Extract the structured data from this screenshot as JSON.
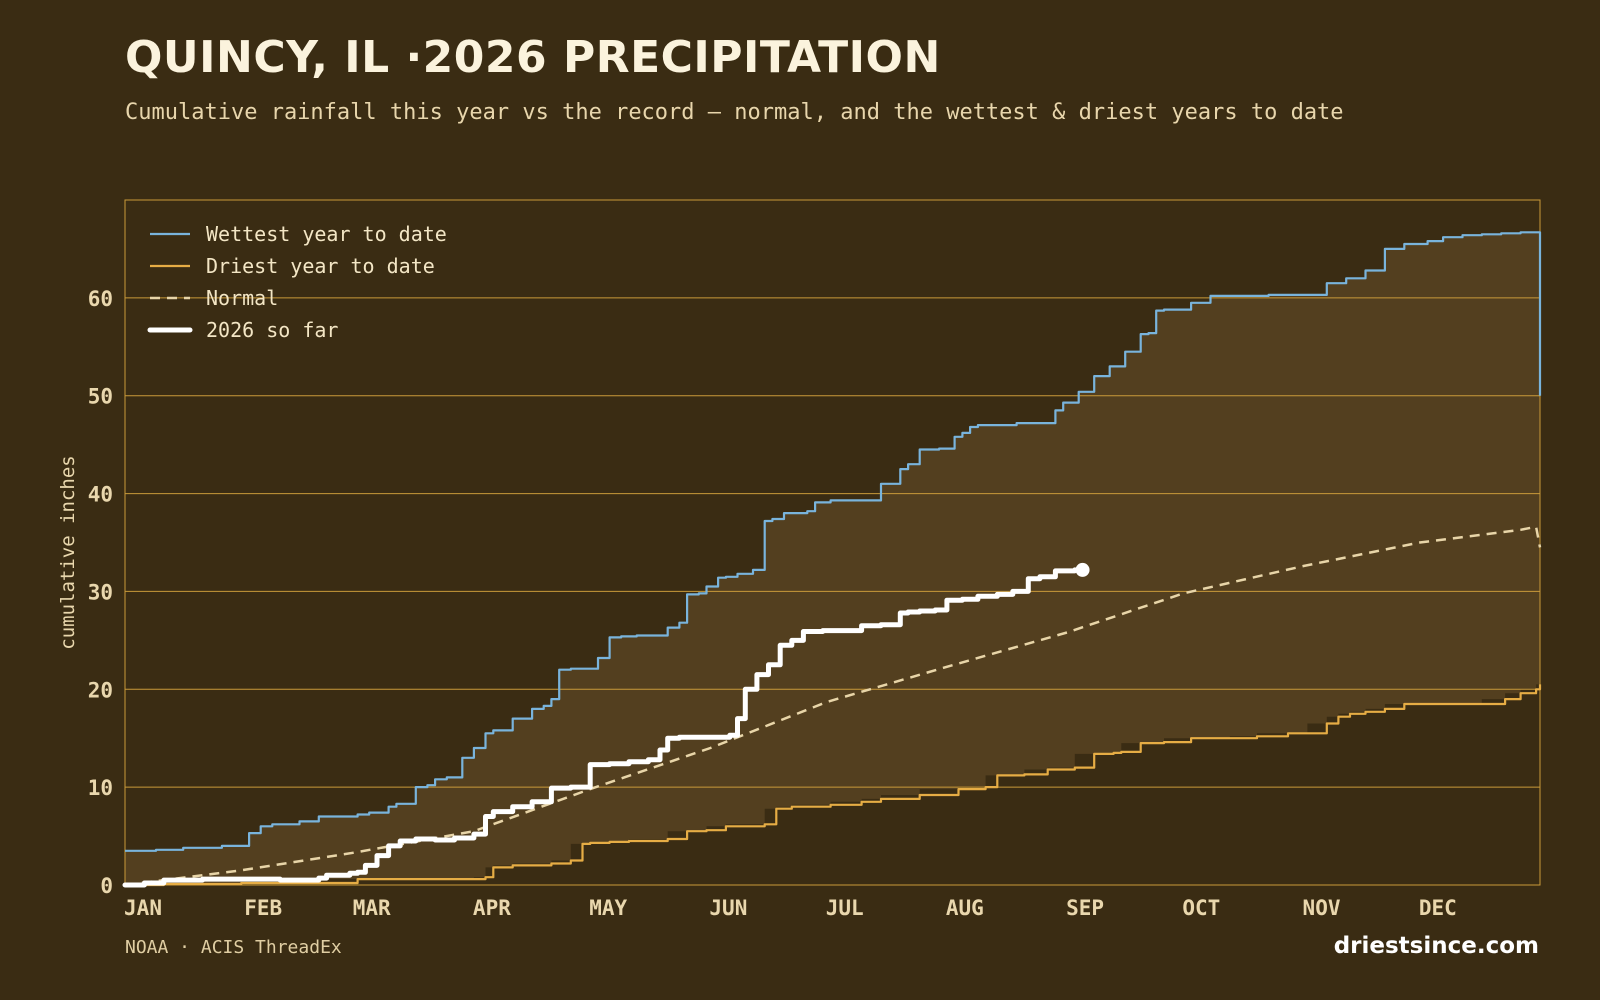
{
  "title": "QUINCY, IL ·2026 PRECIPITATION",
  "subtitle": "Cumulative rainfall this year vs the record — normal, and the wettest & driest years to date",
  "source": "NOAA · ACIS ThreadEx",
  "brand": "driestsince.com",
  "colors": {
    "background": "#3a2c13",
    "band_fill": "#533f1f",
    "grid": "#c99a3a",
    "wettest": "#79b4dc",
    "driest": "#e6ad45",
    "normal": "#e8d5a8",
    "current": "#ffffff",
    "tick_text": "#e9d7ad"
  },
  "chart_data": {
    "type": "line",
    "ylabel": "cumulative inches",
    "xlabel": "",
    "ylim": [
      0,
      70
    ],
    "yticks": [
      0,
      10,
      20,
      30,
      40,
      50,
      60
    ],
    "xlim": [
      0,
      365
    ],
    "xticks": [
      {
        "label": "JAN",
        "day": 0
      },
      {
        "label": "FEB",
        "day": 31
      },
      {
        "label": "MAR",
        "day": 59
      },
      {
        "label": "APR",
        "day": 90
      },
      {
        "label": "MAY",
        "day": 120
      },
      {
        "label": "JUN",
        "day": 151
      },
      {
        "label": "JUL",
        "day": 181
      },
      {
        "label": "AUG",
        "day": 212
      },
      {
        "label": "SEP",
        "day": 243
      },
      {
        "label": "OCT",
        "day": 273
      },
      {
        "label": "NOV",
        "day": 304
      },
      {
        "label": "DEC",
        "day": 334
      }
    ],
    "grid": true,
    "legend_position": "top-left",
    "band": "shaded between wettest and driest",
    "series": [
      {
        "name": "Wettest year to date",
        "style": "solid",
        "x": [
          0,
          8,
          15,
          25,
          32,
          35,
          38,
          45,
          50,
          55,
          60,
          63,
          68,
          70,
          75,
          78,
          80,
          83,
          87,
          90,
          93,
          95,
          100,
          105,
          108,
          110,
          112,
          115,
          122,
          125,
          128,
          132,
          140,
          143,
          145,
          148,
          150,
          153,
          155,
          158,
          162,
          165,
          167,
          170,
          176,
          178,
          182,
          189,
          195,
          200,
          202,
          205,
          210,
          214,
          216,
          218,
          220,
          222,
          225,
          230,
          240,
          242,
          246,
          250,
          254,
          258,
          262,
          264,
          266,
          268,
          270,
          275,
          280,
          290,
          295,
          300,
          310,
          315,
          320,
          325,
          330,
          336,
          340,
          345,
          350,
          355,
          360,
          364,
          365
        ],
        "y": [
          3.5,
          3.6,
          3.8,
          4.0,
          5.3,
          6.0,
          6.2,
          6.5,
          7.0,
          7.0,
          7.2,
          7.4,
          8.0,
          8.3,
          10.0,
          10.2,
          10.8,
          11.0,
          13.0,
          14.0,
          15.5,
          15.8,
          17.0,
          18.0,
          18.3,
          19.0,
          22.0,
          22.1,
          23.2,
          25.3,
          25.4,
          25.5,
          26.3,
          26.8,
          29.7,
          29.8,
          30.5,
          31.4,
          31.5,
          31.8,
          32.2,
          37.2,
          37.4,
          38.0,
          38.2,
          39.1,
          39.3,
          39.3,
          41.0,
          42.5,
          43.0,
          44.5,
          44.6,
          45.8,
          46.2,
          46.8,
          47.0,
          47.0,
          47.0,
          47.2,
          48.5,
          49.3,
          50.4,
          52.0,
          53.0,
          54.5,
          56.3,
          56.4,
          58.7,
          58.8,
          58.8,
          59.5,
          60.2,
          60.2,
          60.3,
          60.3,
          61.5,
          62.0,
          62.8,
          65.0,
          65.5,
          65.8,
          66.2,
          66.4,
          66.5,
          66.6,
          66.7,
          66.7,
          50.0
        ]
      },
      {
        "name": "Driest year to date",
        "style": "solid",
        "x": [
          0,
          10,
          30,
          60,
          90,
          93,
          95,
          100,
          110,
          115,
          118,
          120,
          125,
          130,
          140,
          145,
          150,
          155,
          165,
          168,
          172,
          182,
          190,
          195,
          205,
          215,
          222,
          225,
          232,
          238,
          245,
          250,
          255,
          257,
          262,
          268,
          275,
          285,
          292,
          300,
          305,
          310,
          313,
          316,
          320,
          325,
          330,
          340,
          350,
          356,
          360,
          364,
          365
        ],
        "y": [
          0,
          0.1,
          0.2,
          0.6,
          0.6,
          0.8,
          1.8,
          2.0,
          2.2,
          2.5,
          4.2,
          4.3,
          4.4,
          4.5,
          4.7,
          5.5,
          5.6,
          6.0,
          6.2,
          7.8,
          8.0,
          8.2,
          8.5,
          8.8,
          9.2,
          9.8,
          10.0,
          11.2,
          11.3,
          11.8,
          12.0,
          13.4,
          13.5,
          13.6,
          14.5,
          14.6,
          15.0,
          15.0,
          15.2,
          15.5,
          15.5,
          16.5,
          17.2,
          17.5,
          17.7,
          18.0,
          18.5,
          18.5,
          18.5,
          19.0,
          19.6,
          20.0,
          20.5
        ]
      },
      {
        "name": "Normal",
        "style": "dashed",
        "x": [
          0,
          30,
          59,
          90,
          120,
          151,
          181,
          212,
          243,
          273,
          304,
          334,
          360,
          364,
          365
        ],
        "y": [
          0,
          1.5,
          3.3,
          5.5,
          9.8,
          14.0,
          18.7,
          22.3,
          25.8,
          29.8,
          32.6,
          35.0,
          36.3,
          36.6,
          34.5
        ]
      },
      {
        "name": "2026 so far",
        "style": "thick",
        "x": [
          0,
          5,
          10,
          20,
          40,
          50,
          52,
          58,
          60,
          62,
          65,
          68,
          71,
          75,
          80,
          85,
          90,
          93,
          95,
          100,
          105,
          110,
          115,
          120,
          125,
          130,
          135,
          138,
          140,
          143,
          150,
          156,
          158,
          160,
          163,
          166,
          169,
          172,
          175,
          180,
          190,
          195,
          200,
          202,
          205,
          209,
          212,
          216,
          220,
          225,
          229,
          233,
          236,
          240,
          245
        ],
        "y": [
          0,
          0.2,
          0.5,
          0.6,
          0.5,
          0.7,
          1.0,
          1.2,
          1.3,
          2.0,
          3.0,
          4.0,
          4.5,
          4.7,
          4.6,
          4.8,
          5.2,
          7.0,
          7.5,
          8.0,
          8.5,
          9.9,
          10.0,
          12.3,
          12.4,
          12.6,
          12.8,
          13.8,
          15.0,
          15.1,
          15.1,
          15.3,
          17.0,
          20.0,
          21.5,
          22.5,
          24.5,
          25.0,
          25.9,
          26.0,
          26.5,
          26.6,
          27.8,
          27.9,
          28.0,
          28.1,
          29.1,
          29.2,
          29.5,
          29.7,
          30.0,
          31.3,
          31.5,
          32.1,
          32.2
        ]
      }
    ]
  }
}
